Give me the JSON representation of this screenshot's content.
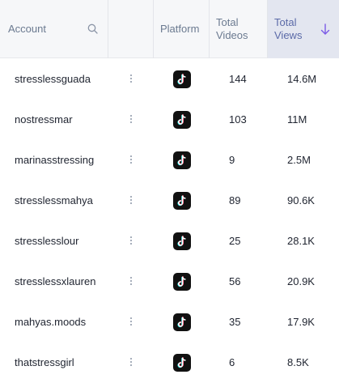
{
  "header": {
    "account_label": "Account",
    "platform_label": "Platform",
    "videos_label_line1": "Total",
    "videos_label_line2": "Videos",
    "views_label_line1": "Total",
    "views_label_line2": "Views",
    "sort_icon": "arrow-down-icon",
    "search_icon": "search-icon"
  },
  "colors": {
    "sorted_column_bg": "#e3e6f0",
    "sort_accent": "#7b5be6",
    "platform_icon_bg": "#111111"
  },
  "rows": [
    {
      "account": "stresslessguada",
      "platform": "tiktok-icon",
      "total_videos": "144",
      "total_views": "14.6M"
    },
    {
      "account": "nostressmar",
      "platform": "tiktok-icon",
      "total_videos": "103",
      "total_views": "11M"
    },
    {
      "account": "marinasstressing",
      "platform": "tiktok-icon",
      "total_videos": "9",
      "total_views": "2.5M"
    },
    {
      "account": "stresslessmahya",
      "platform": "tiktok-icon",
      "total_videos": "89",
      "total_views": "90.6K"
    },
    {
      "account": "stresslesslour",
      "platform": "tiktok-icon",
      "total_videos": "25",
      "total_views": "28.1K"
    },
    {
      "account": "stresslessxlauren",
      "platform": "tiktok-icon",
      "total_videos": "56",
      "total_views": "20.9K"
    },
    {
      "account": "mahyas.moods",
      "platform": "tiktok-icon",
      "total_videos": "35",
      "total_views": "17.9K"
    },
    {
      "account": "thatstressgirl",
      "platform": "tiktok-icon",
      "total_videos": "6",
      "total_views": "8.5K"
    }
  ]
}
